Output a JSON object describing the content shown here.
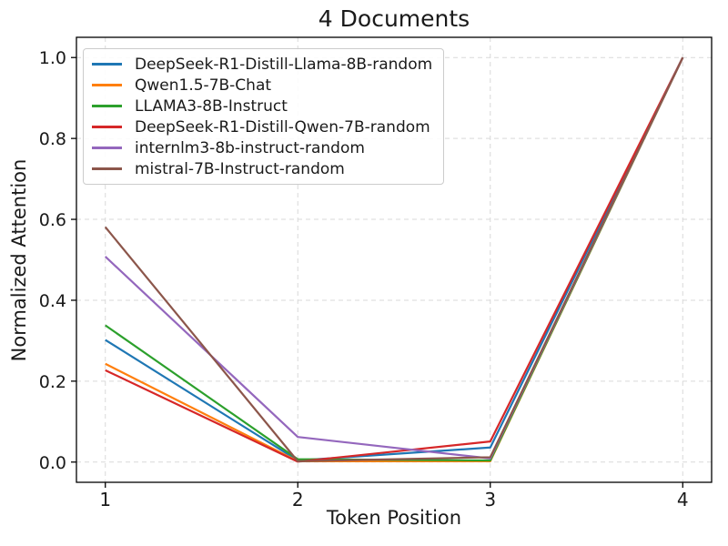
{
  "chart_data": {
    "type": "line",
    "title": "4 Documents",
    "xlabel": "Token Position",
    "ylabel": "Normalized Attention",
    "x": [
      1,
      2,
      3,
      4
    ],
    "xlim": [
      0.85,
      4.15
    ],
    "ylim": [
      -0.05,
      1.05
    ],
    "xticks": {
      "values": [
        1,
        2,
        3,
        4
      ],
      "labels": [
        "1",
        "2",
        "3",
        "4"
      ]
    },
    "yticks": {
      "values": [
        0.0,
        0.2,
        0.4,
        0.6,
        0.8,
        1.0
      ],
      "labels": [
        "0.0",
        "0.2",
        "0.4",
        "0.6",
        "0.8",
        "1.0"
      ]
    },
    "grid": true,
    "grid_color": "#d9d9d9",
    "spine_color": "#000000",
    "tick_label_color": "#1a1a1a",
    "legend_position": "upper-left",
    "series": [
      {
        "name": "DeepSeek-R1-Distill-Llama-8B-random",
        "color": "#1f77b4",
        "values": [
          0.302,
          0.004,
          0.036,
          1.0
        ]
      },
      {
        "name": "Qwen1.5-7B-Chat",
        "color": "#ff7f0e",
        "values": [
          0.243,
          0.002,
          0.002,
          1.0
        ]
      },
      {
        "name": "LLAMA3-8B-Instruct",
        "color": "#2ca02c",
        "values": [
          0.338,
          0.007,
          0.004,
          1.0
        ]
      },
      {
        "name": "DeepSeek-R1-Distill-Qwen-7B-random",
        "color": "#d62728",
        "values": [
          0.227,
          0.001,
          0.051,
          1.0
        ]
      },
      {
        "name": "internlm3-8b-instruct-random",
        "color": "#9467bd",
        "values": [
          0.508,
          0.062,
          0.009,
          1.0
        ]
      },
      {
        "name": "mistral-7B-Instruct-random",
        "color": "#8c564b",
        "values": [
          0.581,
          0.002,
          0.012,
          1.0
        ]
      }
    ]
  }
}
